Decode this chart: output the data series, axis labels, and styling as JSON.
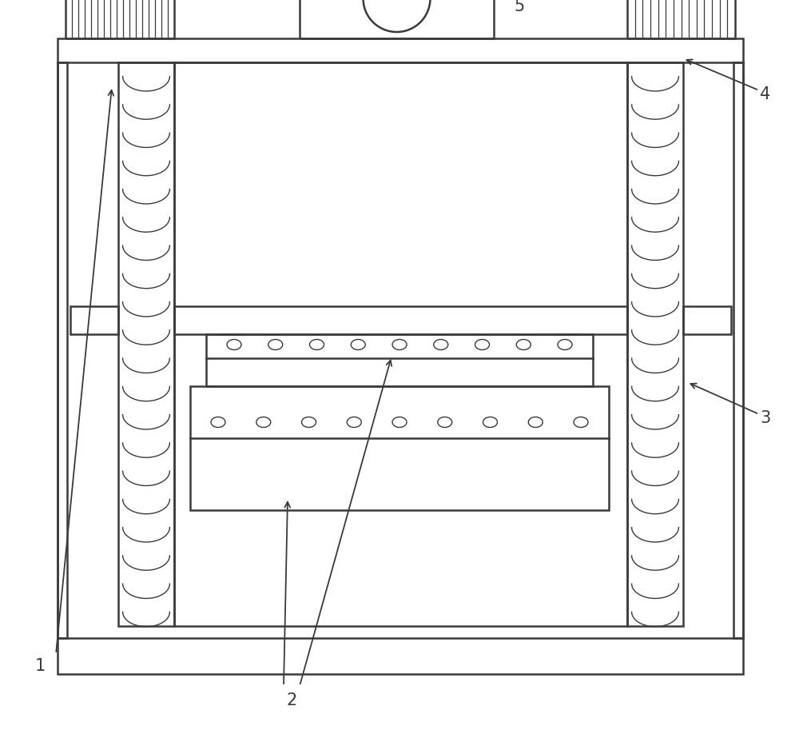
{
  "bg_color": "#ffffff",
  "lc": "#3a3a3a",
  "lw": 1.8,
  "fig_w": 10.0,
  "fig_h": 9.18,
  "dpi": 100,
  "xlim": [
    0,
    1000
  ],
  "ylim": [
    0,
    918
  ]
}
